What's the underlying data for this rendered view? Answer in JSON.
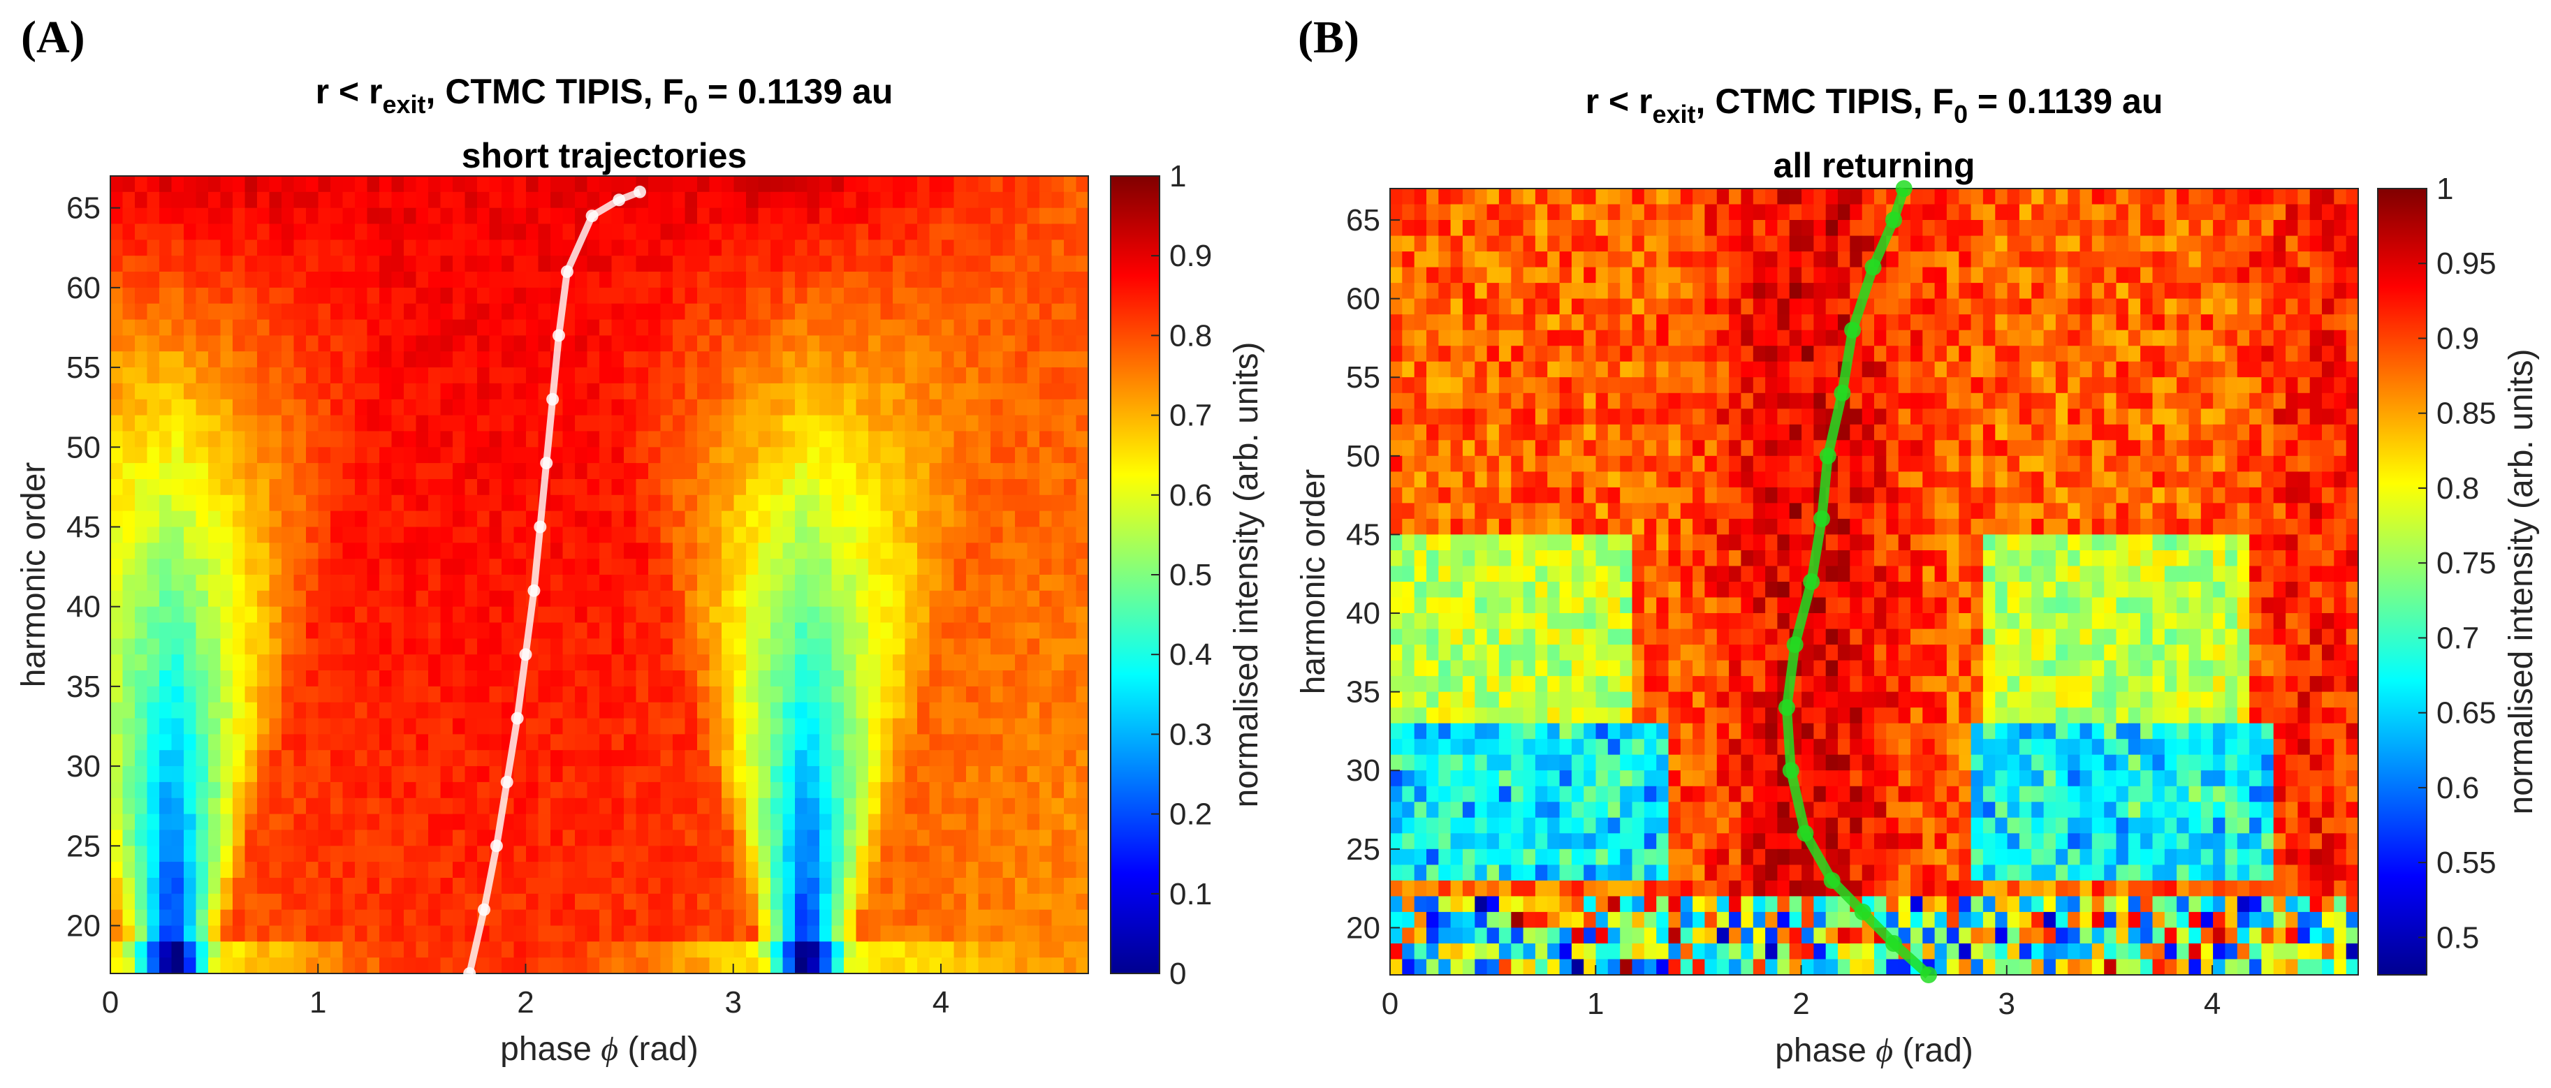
{
  "chart_data": [
    {
      "type": "heatmap",
      "panel_label": "(A)",
      "title_line1_parts": [
        "r < r",
        "exit",
        ", CTMC TIPIS, F",
        "0",
        " = 0.1139 au"
      ],
      "title_line2": "short trajectories",
      "xlabel_parts": [
        "phase ",
        "ϕ",
        " (rad)"
      ],
      "ylabel": "harmonic order",
      "xlim": [
        0,
        4.71
      ],
      "ylim": [
        17,
        67
      ],
      "xticks": [
        "0",
        "1",
        "2",
        "3",
        "4"
      ],
      "yticks": [
        "20",
        "25",
        "30",
        "35",
        "40",
        "45",
        "50",
        "55",
        "60",
        "65"
      ],
      "colorbar": {
        "label": "normalised intensity (arb. units)",
        "range": [
          0,
          1
        ],
        "ticks": [
          "0",
          "0.1",
          "0.2",
          "0.3",
          "0.4",
          "0.5",
          "0.6",
          "0.7",
          "0.8",
          "0.9",
          "1"
        ]
      },
      "colormap": "jet",
      "pattern": "V-shaped low-intensity region at low harmonic orders centred near phase 0.3 and 3.3; high intensity near phase 1.9 and 4.7",
      "overlay": {
        "color": "#ffffff",
        "description": "phase of maximum intensity vs harmonic order",
        "x": [
          1.73,
          1.8,
          1.86,
          1.91,
          1.96,
          2.0,
          2.04,
          2.07,
          2.1,
          2.13,
          2.16,
          2.2,
          2.32,
          2.45,
          2.55
        ],
        "y": [
          17,
          21,
          25,
          29,
          33,
          37,
          41,
          45,
          49,
          53,
          57,
          61,
          64.5,
          65.5,
          66
        ]
      },
      "grid": false
    },
    {
      "type": "heatmap",
      "panel_label": "(B)",
      "title_line1_parts": [
        "r < r",
        "exit",
        ", CTMC TIPIS, F",
        "0",
        " = 0.1139 au"
      ],
      "title_line2": "all returning",
      "xlabel_parts": [
        "phase ",
        "ϕ",
        " (rad)"
      ],
      "ylabel": "harmonic order",
      "xlim": [
        0,
        4.71
      ],
      "ylim": [
        17,
        67
      ],
      "xticks": [
        "0",
        "1",
        "2",
        "3",
        "4"
      ],
      "yticks": [
        "20",
        "25",
        "30",
        "35",
        "40",
        "45",
        "50",
        "55",
        "60",
        "65"
      ],
      "colorbar": {
        "label": "normalised intensity (arb. units)",
        "range": [
          0.475,
          1
        ],
        "ticks": [
          "0.5",
          "0.55",
          "0.6",
          "0.65",
          "0.7",
          "0.75",
          "0.8",
          "0.85",
          "0.9",
          "0.95",
          "1"
        ]
      },
      "colormap": "jet",
      "pattern": "blue band between harmonic orders 23 and 33 at phases 0-1.3 and 2.9-4.3; dark red ridge near phase 1.9-2.3",
      "overlay": {
        "color": "#22dd22",
        "description": "phase of maximum intensity vs harmonic order",
        "x": [
          2.62,
          2.45,
          2.3,
          2.15,
          2.02,
          1.95,
          1.93,
          1.97,
          2.05,
          2.1,
          2.13,
          2.2,
          2.25,
          2.35,
          2.45,
          2.5
        ],
        "y": [
          17,
          19,
          21,
          23,
          26,
          30,
          34,
          38,
          42,
          46,
          50,
          54,
          58,
          62,
          65,
          67
        ]
      },
      "grid": false
    }
  ]
}
